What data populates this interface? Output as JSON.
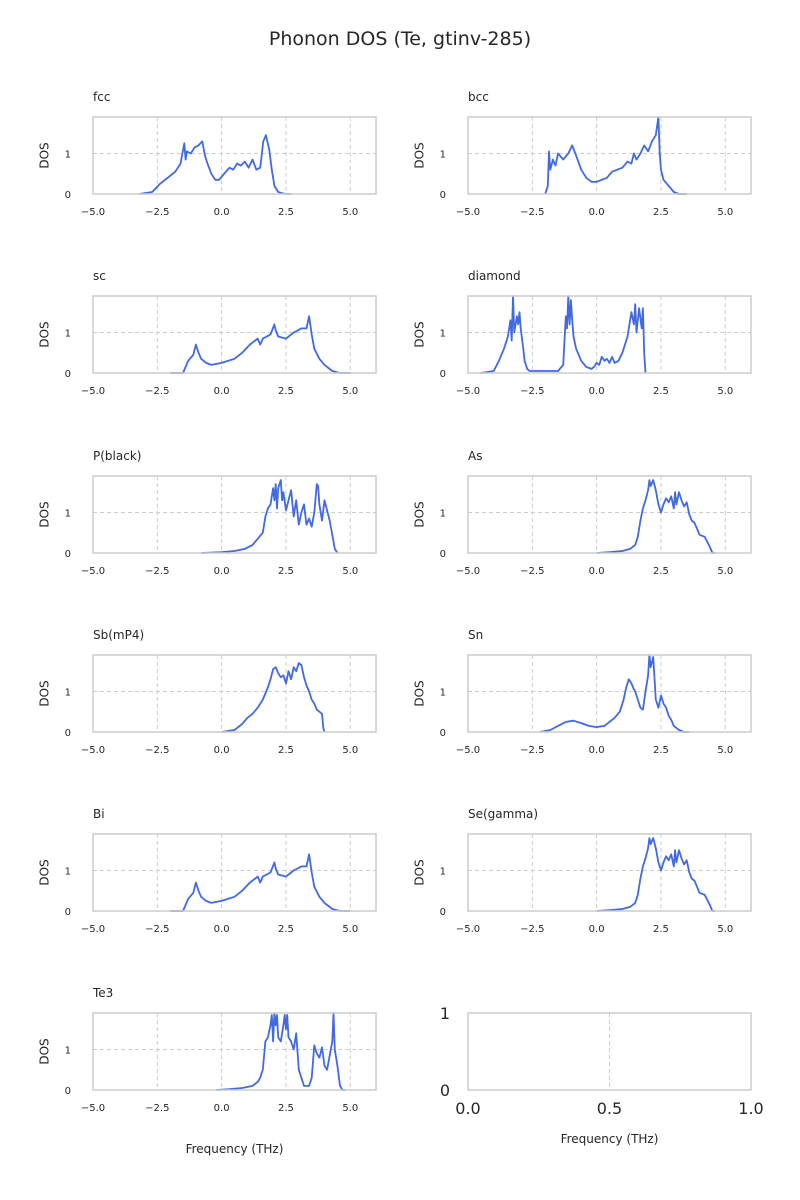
{
  "figure": {
    "title": "Phonon DOS (Te, gtinv-285)",
    "line_color": "#4169e1",
    "grid_color": "#cccccc",
    "frame_color": "#cccccc"
  },
  "chart_data": [
    {
      "type": "line",
      "title": "fcc",
      "xlabel": "",
      "ylabel": "DOS",
      "xlim": [
        -5.0,
        6.0
      ],
      "ylim": [
        0,
        1.9
      ],
      "xticks": [
        "−5.0",
        "−2.5",
        "0.0",
        "2.5",
        "5.0"
      ],
      "xtick_values": [
        -5,
        -2.5,
        0,
        2.5,
        5
      ],
      "yticks": [
        "0",
        "1"
      ],
      "ytick_values": [
        0,
        1
      ],
      "x": [
        -3.2,
        -2.7,
        -2.4,
        -2.1,
        -1.8,
        -1.6,
        -1.45,
        -1.4,
        -1.35,
        -1.2,
        -1.05,
        -0.9,
        -0.75,
        -0.65,
        -0.55,
        -0.4,
        -0.25,
        -0.1,
        0.1,
        0.3,
        0.45,
        0.6,
        0.75,
        0.9,
        1.05,
        1.2,
        1.35,
        1.5,
        1.62,
        1.72,
        1.85,
        1.95,
        2.05,
        2.2,
        2.35,
        2.5,
        2.7
      ],
      "y": [
        0.0,
        0.05,
        0.25,
        0.4,
        0.55,
        0.75,
        1.25,
        0.85,
        1.05,
        1.0,
        1.15,
        1.2,
        1.3,
        0.95,
        0.75,
        0.5,
        0.35,
        0.35,
        0.5,
        0.65,
        0.6,
        0.75,
        0.7,
        0.8,
        0.65,
        0.85,
        0.6,
        0.65,
        1.3,
        1.45,
        1.1,
        0.6,
        0.2,
        0.05,
        0.02,
        0.0,
        0.0
      ]
    },
    {
      "type": "line",
      "title": "bcc",
      "xlabel": "",
      "ylabel": "DOS",
      "xlim": [
        -5.0,
        6.0
      ],
      "ylim": [
        0,
        1.9
      ],
      "xticks": [
        "−5.0",
        "−2.5",
        "0.0",
        "2.5",
        "5.0"
      ],
      "xtick_values": [
        -5,
        -2.5,
        0,
        2.5,
        5
      ],
      "yticks": [
        "0",
        "1"
      ],
      "ytick_values": [
        0,
        1
      ],
      "x": [
        -2.0,
        -1.9,
        -1.85,
        -1.8,
        -1.7,
        -1.6,
        -1.5,
        -1.3,
        -1.1,
        -0.95,
        -0.8,
        -0.6,
        -0.4,
        -0.2,
        0.0,
        0.2,
        0.4,
        0.6,
        0.8,
        1.0,
        1.2,
        1.35,
        1.45,
        1.55,
        1.7,
        1.85,
        2.0,
        2.15,
        2.3,
        2.4,
        2.45,
        2.5,
        2.6,
        2.8,
        3.0,
        3.2,
        3.5
      ],
      "y": [
        0.0,
        0.2,
        1.05,
        0.6,
        0.85,
        0.7,
        1.0,
        0.85,
        1.0,
        1.2,
        0.95,
        0.6,
        0.4,
        0.3,
        0.3,
        0.35,
        0.4,
        0.55,
        0.6,
        0.65,
        0.8,
        0.75,
        1.0,
        0.85,
        1.0,
        1.2,
        1.05,
        1.3,
        1.45,
        1.9,
        1.0,
        0.6,
        0.35,
        0.2,
        0.05,
        0.0,
        0.0
      ]
    },
    {
      "type": "line",
      "title": "sc",
      "xlabel": "",
      "ylabel": "DOS",
      "xlim": [
        -5.0,
        6.0
      ],
      "ylim": [
        0,
        1.9
      ],
      "xticks": [
        "−5.0",
        "−2.5",
        "0.0",
        "2.5",
        "5.0"
      ],
      "xtick_values": [
        -5,
        -2.5,
        0,
        2.5,
        5
      ],
      "yticks": [
        "0",
        "1"
      ],
      "ytick_values": [
        0,
        1
      ],
      "x": [
        -2.0,
        -1.5,
        -1.3,
        -1.1,
        -1.0,
        -0.9,
        -0.8,
        -0.6,
        -0.4,
        0.0,
        0.5,
        0.8,
        1.1,
        1.4,
        1.5,
        1.6,
        1.9,
        2.05,
        2.1,
        2.2,
        2.5,
        2.8,
        3.1,
        3.3,
        3.4,
        3.5,
        3.6,
        3.8,
        4.0,
        4.3,
        4.6,
        5.0
      ],
      "y": [
        0.0,
        0.0,
        0.3,
        0.45,
        0.7,
        0.5,
        0.35,
        0.25,
        0.2,
        0.25,
        0.35,
        0.5,
        0.7,
        0.85,
        0.7,
        0.85,
        0.95,
        1.2,
        1.05,
        0.9,
        0.85,
        1.0,
        1.1,
        1.1,
        1.4,
        0.95,
        0.6,
        0.35,
        0.2,
        0.05,
        0.0,
        0.0
      ]
    },
    {
      "type": "line",
      "title": "diamond",
      "xlabel": "",
      "ylabel": "DOS",
      "xlim": [
        -5.0,
        6.0
      ],
      "ylim": [
        0,
        1.9
      ],
      "xticks": [
        "−5.0",
        "−2.5",
        "0.0",
        "2.5",
        "5.0"
      ],
      "xtick_values": [
        -5,
        -2.5,
        0,
        2.5,
        5
      ],
      "yticks": [
        "0",
        "1"
      ],
      "ytick_values": [
        0,
        1
      ],
      "x": [
        -4.5,
        -4.0,
        -3.8,
        -3.6,
        -3.45,
        -3.35,
        -3.3,
        -3.25,
        -3.2,
        -3.1,
        -3.05,
        -3.0,
        -2.95,
        -2.85,
        -2.8,
        -2.7,
        -2.6,
        -2.5,
        -2.0,
        -1.5,
        -1.3,
        -1.2,
        -1.15,
        -1.1,
        -1.05,
        -1.0,
        -0.95,
        -0.9,
        -0.8,
        -0.6,
        -0.4,
        -0.2,
        -0.1,
        0.0,
        0.1,
        0.2,
        0.3,
        0.4,
        0.5,
        0.6,
        0.7,
        0.85,
        1.0,
        1.2,
        1.35,
        1.45,
        1.5,
        1.55,
        1.65,
        1.75,
        1.8,
        1.85,
        1.9
      ],
      "y": [
        0.0,
        0.05,
        0.3,
        0.6,
        0.9,
        1.3,
        0.8,
        1.9,
        1.0,
        1.4,
        1.2,
        1.5,
        1.1,
        0.6,
        0.3,
        0.1,
        0.05,
        0.05,
        0.05,
        0.05,
        0.2,
        1.4,
        1.1,
        1.9,
        1.2,
        1.8,
        1.3,
        0.9,
        0.6,
        0.3,
        0.15,
        0.1,
        0.15,
        0.25,
        0.2,
        0.4,
        0.3,
        0.35,
        0.25,
        0.4,
        0.25,
        0.3,
        0.5,
        0.9,
        1.5,
        1.2,
        1.7,
        1.0,
        1.6,
        1.1,
        1.6,
        0.5,
        0.0
      ]
    },
    {
      "type": "line",
      "title": "P(black)",
      "xlabel": "",
      "ylabel": "DOS",
      "xlim": [
        -5.0,
        6.0
      ],
      "ylim": [
        0,
        1.9
      ],
      "xticks": [
        "−5.0",
        "−2.5",
        "0.0",
        "2.5",
        "5.0"
      ],
      "xtick_values": [
        -5,
        -2.5,
        0,
        2.5,
        5
      ],
      "yticks": [
        "0",
        "1"
      ],
      "ytick_values": [
        0,
        1
      ],
      "x": [
        -0.8,
        0.0,
        0.5,
        0.9,
        1.2,
        1.4,
        1.6,
        1.7,
        1.8,
        1.9,
        2.0,
        2.05,
        2.1,
        2.15,
        2.2,
        2.3,
        2.35,
        2.4,
        2.5,
        2.6,
        2.7,
        2.8,
        2.9,
        3.0,
        3.1,
        3.2,
        3.3,
        3.4,
        3.5,
        3.6,
        3.7,
        3.75,
        3.8,
        3.9,
        4.0,
        4.2,
        4.4,
        4.5
      ],
      "y": [
        0.0,
        0.02,
        0.05,
        0.1,
        0.2,
        0.35,
        0.5,
        0.9,
        1.1,
        1.2,
        1.6,
        1.3,
        1.7,
        1.1,
        1.6,
        1.8,
        1.3,
        1.5,
        1.05,
        1.3,
        1.55,
        0.9,
        1.3,
        0.7,
        1.0,
        1.2,
        0.7,
        0.85,
        0.65,
        1.0,
        1.7,
        1.65,
        1.2,
        0.8,
        1.3,
        0.8,
        0.1,
        0.0
      ]
    },
    {
      "type": "line",
      "title": "As",
      "xlabel": "",
      "ylabel": "DOS",
      "xlim": [
        -5.0,
        6.0
      ],
      "ylim": [
        0,
        1.9
      ],
      "xticks": [
        "−5.0",
        "−2.5",
        "0.0",
        "2.5",
        "5.0"
      ],
      "xtick_values": [
        -5,
        -2.5,
        0,
        2.5,
        5
      ],
      "yticks": [
        "0",
        "1"
      ],
      "ytick_values": [
        0,
        1
      ],
      "x": [
        0.0,
        0.5,
        1.0,
        1.3,
        1.5,
        1.6,
        1.7,
        1.8,
        1.9,
        2.0,
        2.05,
        2.1,
        2.2,
        2.3,
        2.4,
        2.5,
        2.6,
        2.7,
        2.8,
        2.9,
        3.0,
        3.05,
        3.1,
        3.2,
        3.3,
        3.4,
        3.5,
        3.6,
        3.7,
        3.8,
        3.9,
        4.0,
        4.2,
        4.4,
        4.5,
        4.6
      ],
      "y": [
        0.0,
        0.02,
        0.05,
        0.1,
        0.2,
        0.4,
        0.8,
        1.1,
        1.3,
        1.55,
        1.8,
        1.65,
        1.8,
        1.55,
        1.2,
        1.0,
        1.2,
        1.35,
        1.25,
        1.4,
        1.1,
        1.5,
        1.2,
        1.5,
        1.3,
        1.15,
        1.25,
        0.95,
        0.8,
        0.75,
        0.6,
        0.45,
        0.4,
        0.15,
        0.0,
        0.0
      ]
    },
    {
      "type": "line",
      "title": "Sb(mP4)",
      "xlabel": "",
      "ylabel": "DOS",
      "xlim": [
        -5.0,
        6.0
      ],
      "ylim": [
        0,
        1.9
      ],
      "xticks": [
        "−5.0",
        "−2.5",
        "0.0",
        "2.5",
        "5.0"
      ],
      "xtick_values": [
        -5,
        -2.5,
        0,
        2.5,
        5
      ],
      "yticks": [
        "0",
        "1"
      ],
      "ytick_values": [
        0,
        1
      ],
      "x": [
        0.0,
        0.5,
        0.8,
        1.0,
        1.2,
        1.4,
        1.6,
        1.8,
        1.9,
        2.0,
        2.1,
        2.2,
        2.3,
        2.4,
        2.5,
        2.6,
        2.7,
        2.8,
        2.9,
        3.0,
        3.1,
        3.2,
        3.3,
        3.4,
        3.5,
        3.6,
        3.7,
        3.8,
        3.9,
        3.95,
        4.0
      ],
      "y": [
        0.0,
        0.05,
        0.2,
        0.35,
        0.45,
        0.6,
        0.8,
        1.1,
        1.3,
        1.55,
        1.6,
        1.45,
        1.35,
        1.4,
        1.2,
        1.5,
        1.3,
        1.6,
        1.5,
        1.7,
        1.65,
        1.35,
        1.15,
        1.0,
        0.8,
        0.7,
        0.55,
        0.5,
        0.45,
        0.1,
        0.0
      ]
    },
    {
      "type": "line",
      "title": "Sn",
      "xlabel": "",
      "ylabel": "DOS",
      "xlim": [
        -5.0,
        6.0
      ],
      "ylim": [
        0,
        1.9
      ],
      "xticks": [
        "−5.0",
        "−2.5",
        "0.0",
        "2.5",
        "5.0"
      ],
      "xtick_values": [
        -5,
        -2.5,
        0,
        2.5,
        5
      ],
      "yticks": [
        "0",
        "1"
      ],
      "ytick_values": [
        0,
        1
      ],
      "x": [
        -2.2,
        -1.8,
        -1.5,
        -1.2,
        -0.9,
        -0.6,
        -0.3,
        0.0,
        0.3,
        0.5,
        0.7,
        0.9,
        1.05,
        1.15,
        1.25,
        1.35,
        1.45,
        1.5,
        1.6,
        1.7,
        1.8,
        1.9,
        2.0,
        2.05,
        2.1,
        2.2,
        2.3,
        2.4,
        2.5,
        2.6,
        2.7,
        2.8,
        2.9,
        3.0,
        3.2,
        3.4,
        3.6
      ],
      "y": [
        0.0,
        0.05,
        0.15,
        0.25,
        0.28,
        0.22,
        0.15,
        0.12,
        0.15,
        0.25,
        0.35,
        0.5,
        0.8,
        1.1,
        1.3,
        1.2,
        1.05,
        1.0,
        0.8,
        0.6,
        0.55,
        1.0,
        1.4,
        1.9,
        1.6,
        1.85,
        0.8,
        0.6,
        0.9,
        0.7,
        0.6,
        0.4,
        0.3,
        0.15,
        0.05,
        0.0,
        0.0
      ]
    },
    {
      "type": "line",
      "title": "Bi",
      "xlabel": "",
      "ylabel": "DOS",
      "xlim": [
        -5.0,
        6.0
      ],
      "ylim": [
        0,
        1.9
      ],
      "xticks": [
        "−5.0",
        "−2.5",
        "0.0",
        "2.5",
        "5.0"
      ],
      "xtick_values": [
        -5,
        -2.5,
        0,
        2.5,
        5
      ],
      "yticks": [
        "0",
        "1"
      ],
      "ytick_values": [
        0,
        1
      ],
      "x": [
        -2.0,
        -1.5,
        -1.3,
        -1.1,
        -1.0,
        -0.9,
        -0.8,
        -0.6,
        -0.4,
        0.0,
        0.5,
        0.8,
        1.1,
        1.4,
        1.5,
        1.6,
        1.9,
        2.05,
        2.1,
        2.2,
        2.5,
        2.8,
        3.1,
        3.3,
        3.4,
        3.5,
        3.6,
        3.8,
        4.0,
        4.3,
        4.6,
        5.0
      ],
      "y": [
        0.0,
        0.0,
        0.3,
        0.45,
        0.7,
        0.5,
        0.35,
        0.25,
        0.2,
        0.25,
        0.35,
        0.5,
        0.7,
        0.85,
        0.7,
        0.85,
        0.95,
        1.2,
        1.05,
        0.9,
        0.85,
        1.0,
        1.1,
        1.1,
        1.4,
        0.95,
        0.6,
        0.35,
        0.2,
        0.05,
        0.0,
        0.0
      ]
    },
    {
      "type": "line",
      "title": "Se(gamma)",
      "xlabel": "",
      "ylabel": "DOS",
      "xlim": [
        -5.0,
        6.0
      ],
      "ylim": [
        0,
        1.9
      ],
      "xticks": [
        "−5.0",
        "−2.5",
        "0.0",
        "2.5",
        "5.0"
      ],
      "xtick_values": [
        -5,
        -2.5,
        0,
        2.5,
        5
      ],
      "yticks": [
        "0",
        "1"
      ],
      "ytick_values": [
        0,
        1
      ],
      "x": [
        0.0,
        0.5,
        1.0,
        1.3,
        1.5,
        1.6,
        1.7,
        1.8,
        1.9,
        2.0,
        2.05,
        2.1,
        2.2,
        2.3,
        2.4,
        2.5,
        2.6,
        2.7,
        2.8,
        2.9,
        3.0,
        3.05,
        3.1,
        3.2,
        3.3,
        3.4,
        3.5,
        3.6,
        3.7,
        3.8,
        3.9,
        4.0,
        4.2,
        4.4,
        4.5,
        4.6
      ],
      "y": [
        0.0,
        0.02,
        0.05,
        0.1,
        0.2,
        0.4,
        0.8,
        1.1,
        1.3,
        1.55,
        1.8,
        1.65,
        1.8,
        1.55,
        1.2,
        1.0,
        1.2,
        1.35,
        1.25,
        1.4,
        1.1,
        1.5,
        1.2,
        1.5,
        1.3,
        1.15,
        1.25,
        0.95,
        0.8,
        0.75,
        0.6,
        0.45,
        0.4,
        0.15,
        0.0,
        0.0
      ]
    },
    {
      "type": "line",
      "title": "Te3",
      "xlabel": "Frequency (THz)",
      "ylabel": "DOS",
      "xlim": [
        -5.0,
        6.0
      ],
      "ylim": [
        0,
        1.9
      ],
      "xticks": [
        "−5.0",
        "−2.5",
        "0.0",
        "2.5",
        "5.0"
      ],
      "xtick_values": [
        -5,
        -2.5,
        0,
        2.5,
        5
      ],
      "yticks": [
        "0",
        "1"
      ],
      "ytick_values": [
        0,
        1
      ],
      "x": [
        -0.2,
        0.3,
        0.8,
        1.2,
        1.4,
        1.5,
        1.6,
        1.7,
        1.8,
        1.9,
        1.95,
        2.0,
        2.05,
        2.1,
        2.15,
        2.2,
        2.3,
        2.4,
        2.45,
        2.5,
        2.55,
        2.6,
        2.7,
        2.8,
        2.9,
        3.0,
        3.2,
        3.4,
        3.5,
        3.6,
        3.7,
        3.8,
        3.9,
        4.0,
        4.1,
        4.2,
        4.3,
        4.35,
        4.4,
        4.5,
        4.6,
        4.7,
        4.8
      ],
      "y": [
        0.0,
        0.02,
        0.05,
        0.1,
        0.2,
        0.3,
        0.5,
        1.2,
        1.3,
        1.6,
        1.85,
        1.2,
        1.9,
        1.6,
        1.85,
        1.3,
        1.2,
        1.6,
        1.85,
        1.5,
        1.85,
        1.3,
        1.2,
        1.0,
        1.4,
        0.5,
        0.1,
        0.1,
        0.3,
        1.1,
        0.9,
        0.8,
        1.05,
        0.6,
        0.5,
        0.85,
        1.2,
        1.9,
        1.0,
        0.6,
        0.1,
        0.0,
        0.0
      ]
    },
    {
      "type": "line",
      "title": "",
      "xlabel": "Frequency (THz)",
      "ylabel": "",
      "xlim": [
        0.0,
        1.0
      ],
      "ylim": [
        0,
        1
      ],
      "xticks": [
        "0.0",
        "0.5",
        "1.0"
      ],
      "xtick_values": [
        0,
        0.5,
        1
      ],
      "yticks": [
        "0",
        "1"
      ],
      "ytick_values": [
        0,
        1
      ],
      "x": [],
      "y": []
    }
  ]
}
